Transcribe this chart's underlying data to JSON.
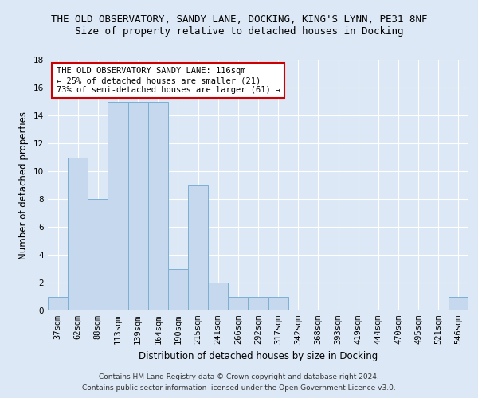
{
  "title_line1": "THE OLD OBSERVATORY, SANDY LANE, DOCKING, KING'S LYNN, PE31 8NF",
  "title_line2": "Size of property relative to detached houses in Docking",
  "xlabel": "Distribution of detached houses by size in Docking",
  "ylabel": "Number of detached properties",
  "categories": [
    "37sqm",
    "62sqm",
    "88sqm",
    "113sqm",
    "139sqm",
    "164sqm",
    "190sqm",
    "215sqm",
    "241sqm",
    "266sqm",
    "292sqm",
    "317sqm",
    "342sqm",
    "368sqm",
    "393sqm",
    "419sqm",
    "444sqm",
    "470sqm",
    "495sqm",
    "521sqm",
    "546sqm"
  ],
  "values": [
    1,
    11,
    8,
    15,
    15,
    15,
    3,
    9,
    2,
    1,
    1,
    1,
    0,
    0,
    0,
    0,
    0,
    0,
    0,
    0,
    1
  ],
  "bar_color": "#c5d8ed",
  "bar_edge_color": "#7bafd4",
  "ylim": [
    0,
    18
  ],
  "yticks": [
    0,
    2,
    4,
    6,
    8,
    10,
    12,
    14,
    16,
    18
  ],
  "annotation_text": "THE OLD OBSERVATORY SANDY LANE: 116sqm\n← 25% of detached houses are smaller (21)\n73% of semi-detached houses are larger (61) →",
  "annotation_box_facecolor": "#ffffff",
  "annotation_box_edgecolor": "#cc0000",
  "footer_line1": "Contains HM Land Registry data © Crown copyright and database right 2024.",
  "footer_line2": "Contains public sector information licensed under the Open Government Licence v3.0.",
  "background_color": "#dce8f5",
  "grid_color": "#ffffff",
  "title_fontsize": 9,
  "subtitle_fontsize": 9,
  "tick_fontsize": 7.5,
  "ylabel_fontsize": 8.5,
  "xlabel_fontsize": 8.5,
  "annotation_fontsize": 7.5,
  "footer_fontsize": 6.5
}
